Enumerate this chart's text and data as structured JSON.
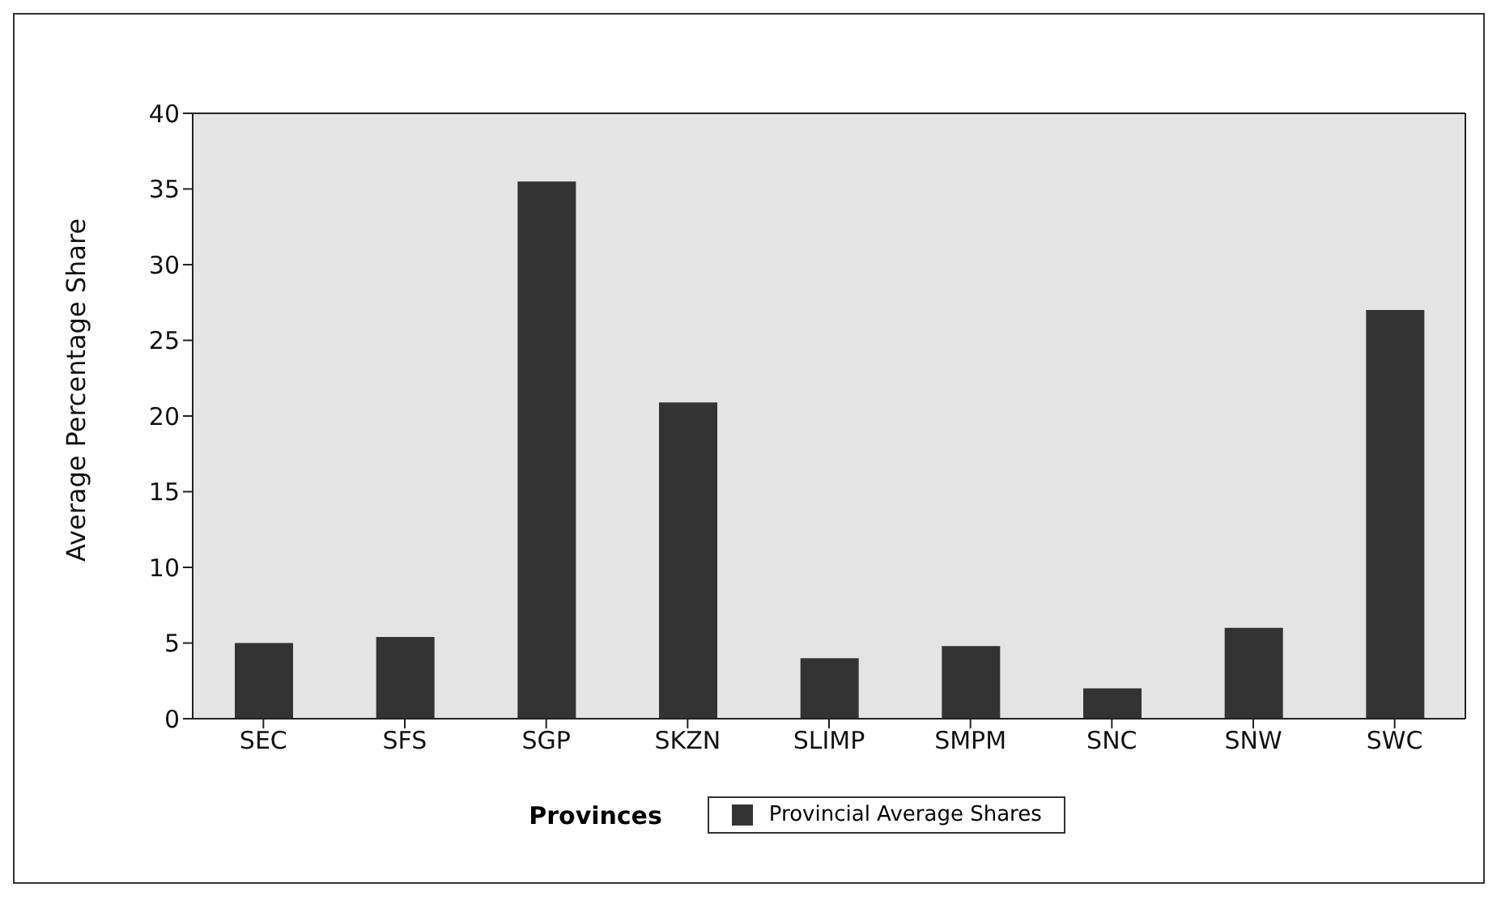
{
  "chart_data": {
    "type": "bar",
    "xlabel": "Provinces",
    "ylabel": "Average Percentage Share",
    "categories": [
      "SEC",
      "SFS",
      "SGP",
      "SKZN",
      "SLIMP",
      "SMPM",
      "SNC",
      "SNW",
      "SWC"
    ],
    "series": [
      {
        "name": "Provincial Average Shares",
        "color": "#333333",
        "values": [
          5.0,
          5.4,
          35.5,
          20.9,
          4.0,
          4.8,
          2.0,
          6.0,
          27.0
        ]
      }
    ],
    "ylim": [
      0,
      40
    ],
    "yticks": [
      0,
      5,
      10,
      15,
      20,
      25,
      30,
      35,
      40
    ],
    "grid": false,
    "legend": "bottom"
  }
}
